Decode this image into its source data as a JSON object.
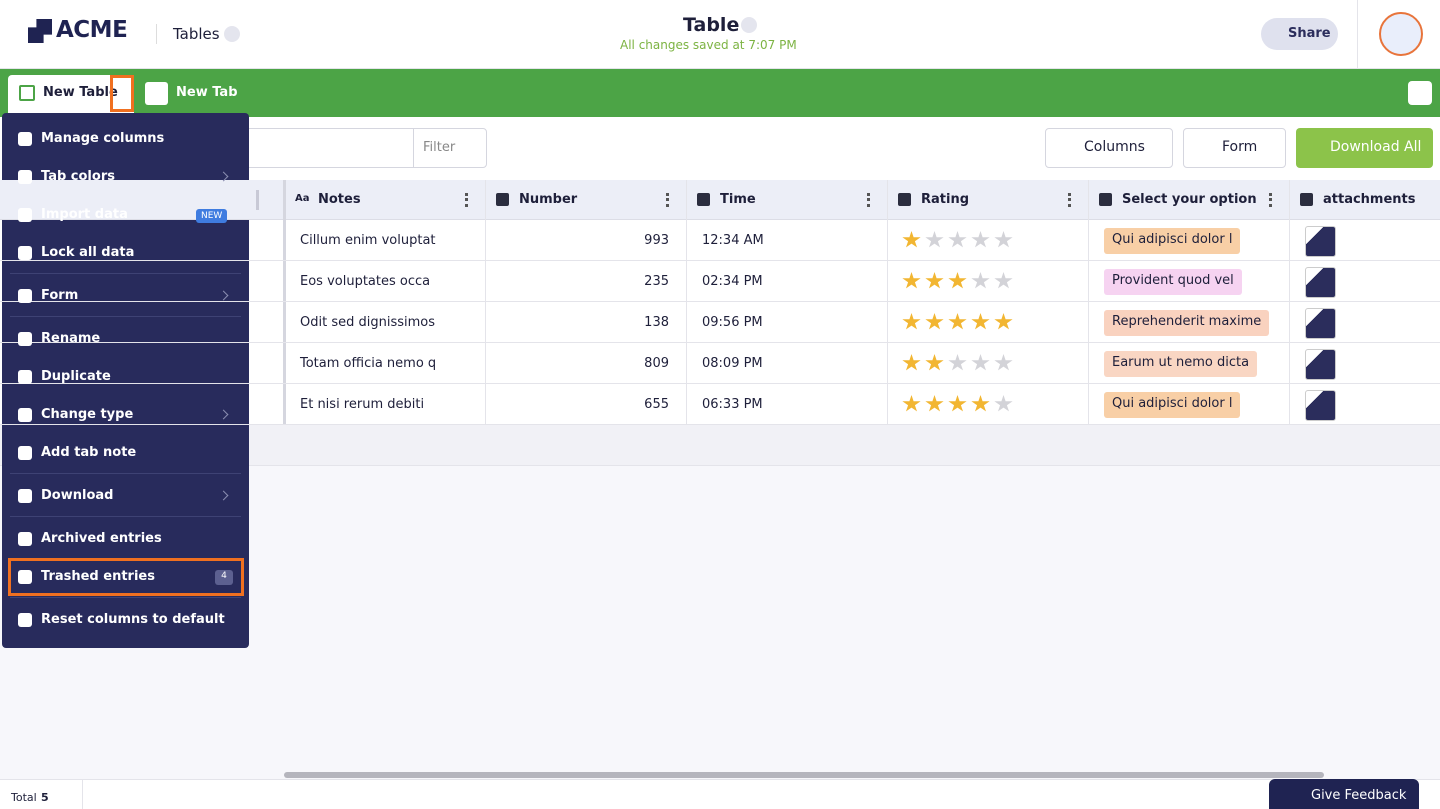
{
  "header": {
    "logo": "ACME",
    "app": "Tables",
    "title": "Table",
    "saved": "All changes saved at 7:07 PM",
    "share": "Share"
  },
  "tabs": [
    "New Table",
    "New Tab"
  ],
  "toolbar": {
    "filter": "Filter",
    "columns": "Columns",
    "form": "Form",
    "download": "Download All"
  },
  "table": {
    "notes_icon": "Aa",
    "columns": [
      "Notes",
      "Number",
      "Time",
      "Rating",
      "Select your option",
      "attachments"
    ],
    "rows": [
      [
        "Cillum enim voluptat",
        993,
        "12:34 AM",
        1,
        "Qui adipisci dolor l"
      ],
      [
        "Eos voluptates occa",
        235,
        "02:34 PM",
        3,
        "Provident quod vel"
      ],
      [
        "Odit sed dignissimos",
        138,
        "09:56 PM",
        5,
        "Reprehenderit maxime"
      ],
      [
        "Totam officia nemo q",
        809,
        "08:09 PM",
        2,
        "Earum ut nemo dicta"
      ],
      [
        "Et nisi rerum debiti",
        655,
        "06:33 PM",
        4,
        "Qui adipisci dolor l"
      ]
    ],
    "rating_max": 5,
    "option_colors": [
      "#f8cfa6",
      "#f6d3f1",
      "#f9d2bf",
      "#f9d6c3",
      "#f8cfa6"
    ]
  },
  "menu": {
    "sections": [
      [
        {
          "label": "Manage columns"
        },
        {
          "label": "Tab colors",
          "submenu": true
        },
        {
          "label": "Import data",
          "badge": "NEW"
        },
        {
          "label": "Lock all data"
        }
      ],
      [
        {
          "label": "Form",
          "submenu": true
        }
      ],
      [
        {
          "label": "Rename"
        },
        {
          "label": "Duplicate"
        },
        {
          "label": "Change type",
          "submenu": true
        },
        {
          "label": "Add tab note"
        }
      ],
      [
        {
          "label": "Download",
          "submenu": true
        }
      ],
      [
        {
          "label": "Archived entries"
        },
        {
          "label": "Trashed entries",
          "count": 4,
          "highlighted": true
        }
      ],
      [
        {
          "label": "Reset columns to default"
        }
      ]
    ]
  },
  "footer": {
    "total": "Total",
    "count": 5,
    "feedback": "Give Feedback"
  }
}
